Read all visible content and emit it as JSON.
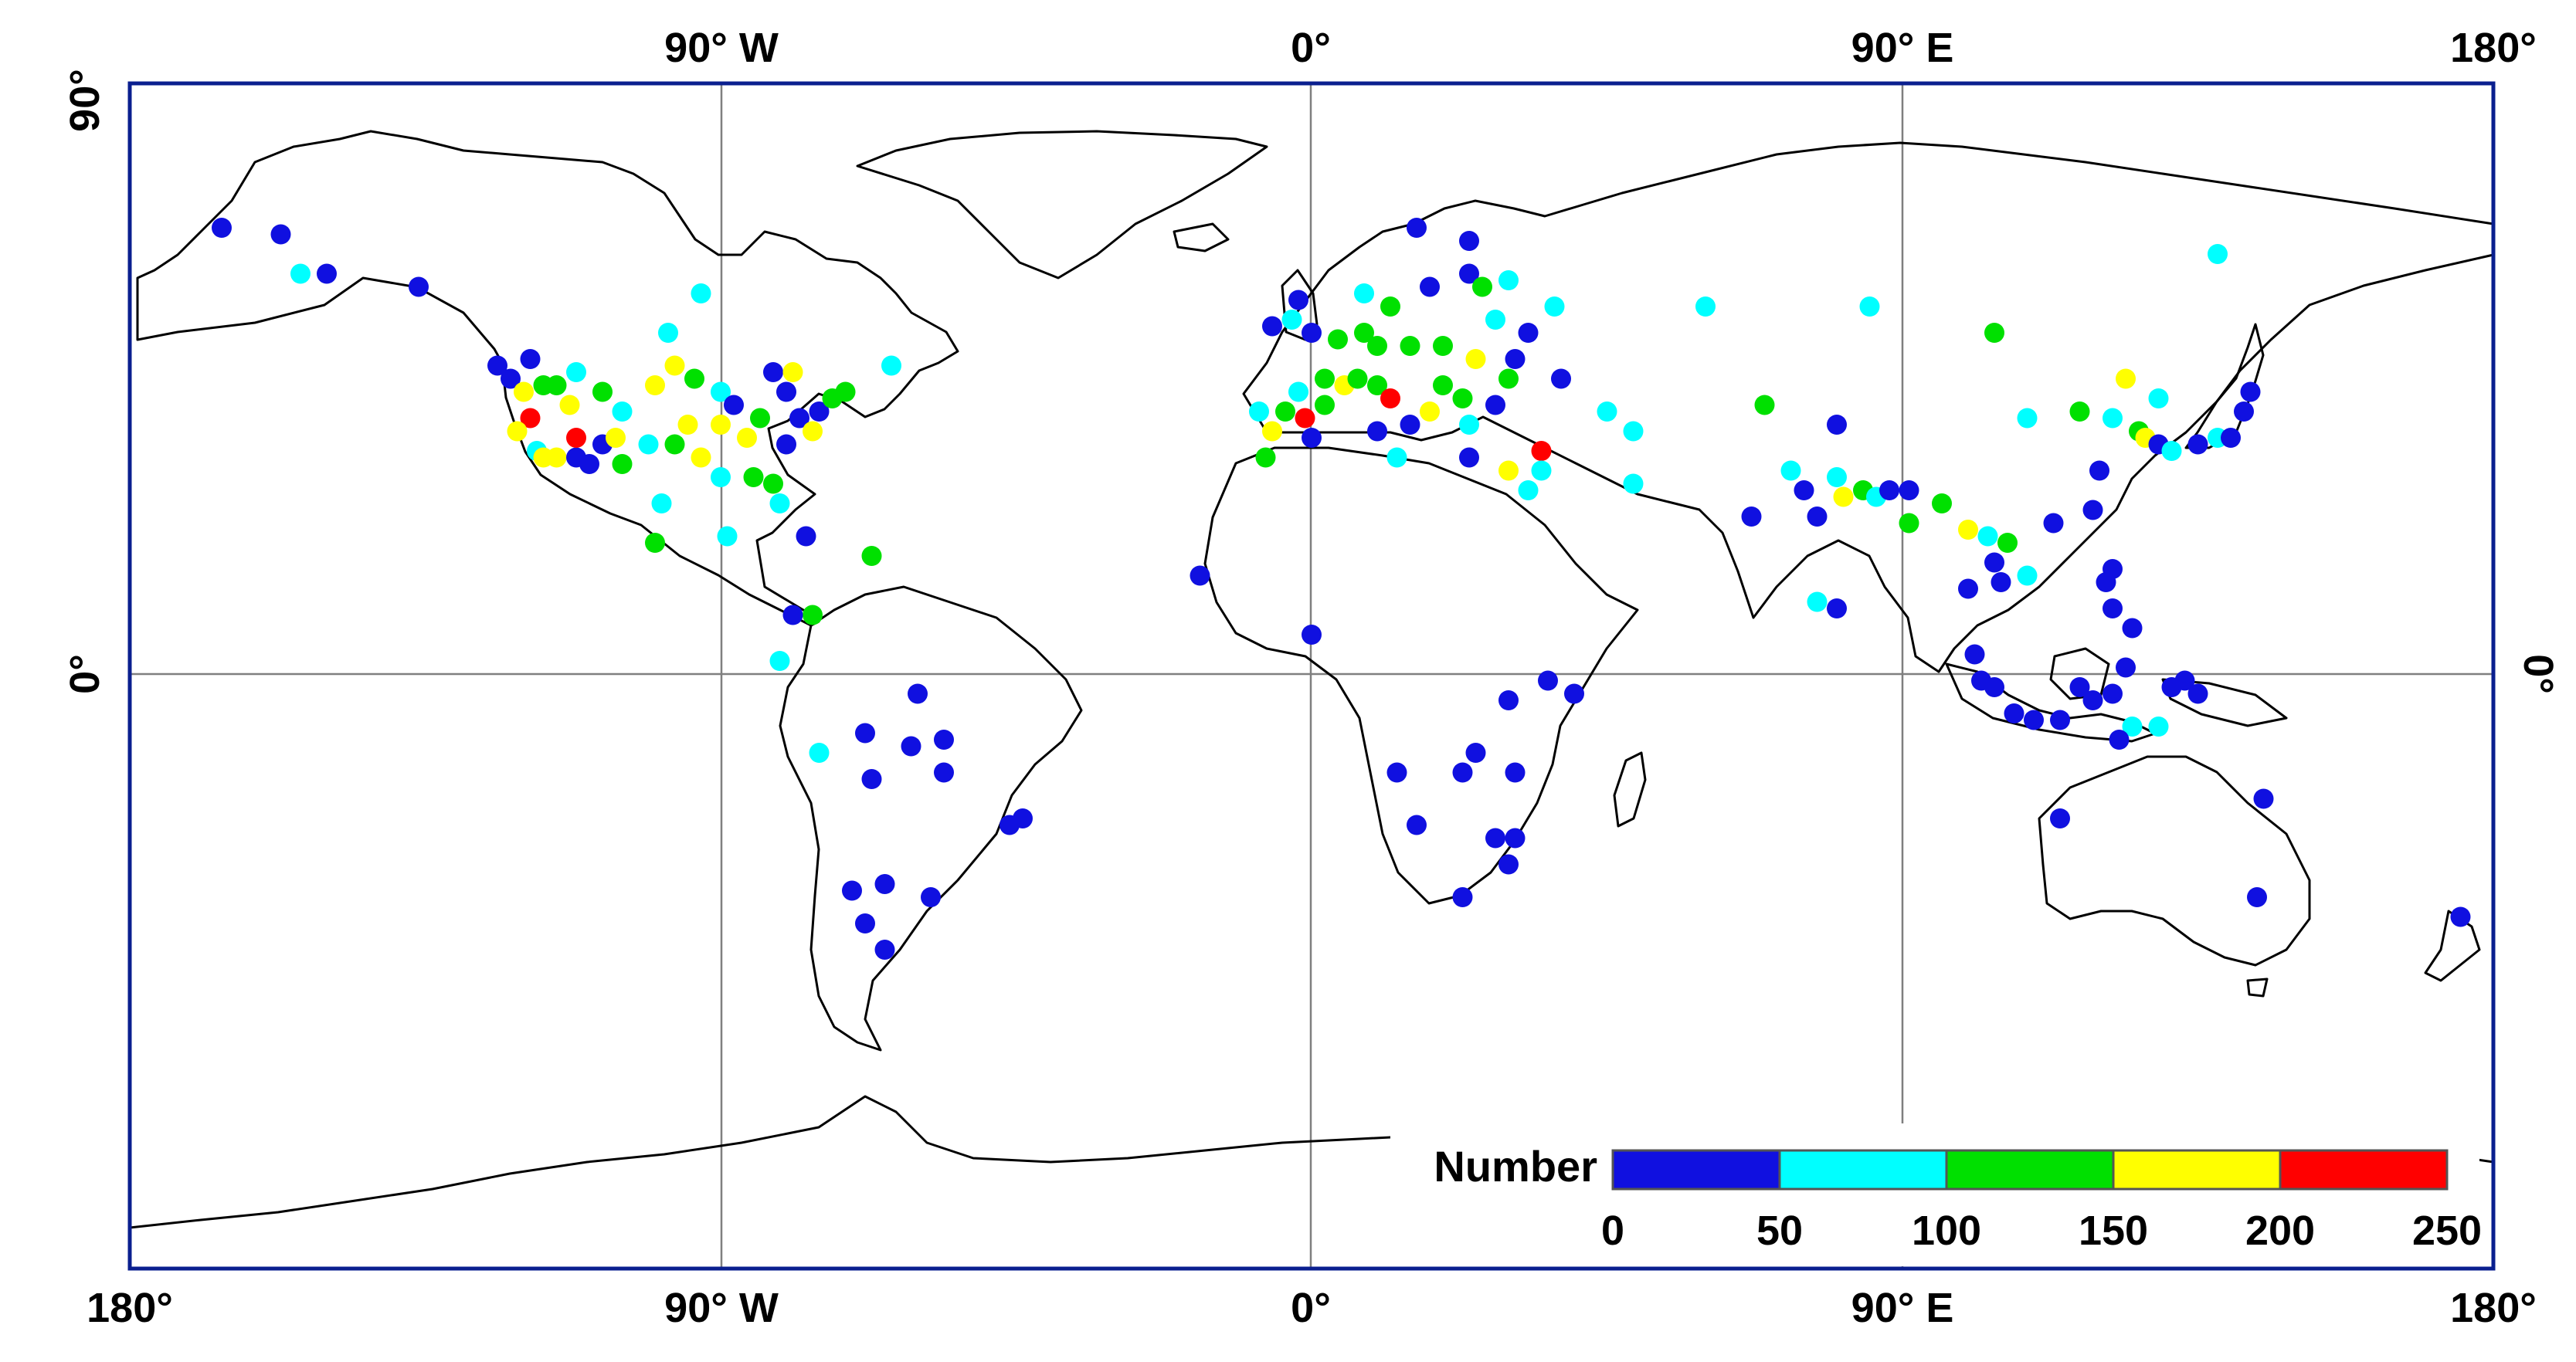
{
  "map": {
    "top_labels": [
      "90° W",
      "0°",
      "90° E",
      "180°"
    ],
    "bottom_labels": [
      "180°",
      "90° W",
      "0°",
      "90° E",
      "180°"
    ],
    "left_labels": [
      "90°",
      "0°"
    ],
    "right_labels": [
      "0°"
    ]
  },
  "legend": {
    "title": "Number",
    "ticks": [
      "0",
      "50",
      "100",
      "150",
      "200",
      "250"
    ],
    "colors": [
      "#1010e0",
      "#00ffff",
      "#00e000",
      "#ffff00",
      "#ff0000"
    ]
  },
  "stations": [
    {
      "lon": -166,
      "lat": 68,
      "v": 20
    },
    {
      "lon": -157,
      "lat": 67,
      "v": 20
    },
    {
      "lon": -154,
      "lat": 61,
      "v": 70
    },
    {
      "lon": -150,
      "lat": 61,
      "v": 20
    },
    {
      "lon": -136,
      "lat": 59,
      "v": 20
    },
    {
      "lon": -124,
      "lat": 47,
      "v": 20
    },
    {
      "lon": -122,
      "lat": 45,
      "v": 30
    },
    {
      "lon": -119,
      "lat": 48,
      "v": 20
    },
    {
      "lon": -117,
      "lat": 44,
      "v": 130
    },
    {
      "lon": -115,
      "lat": 44,
      "v": 130
    },
    {
      "lon": -112,
      "lat": 46,
      "v": 80
    },
    {
      "lon": -113,
      "lat": 41,
      "v": 180
    },
    {
      "lon": -120,
      "lat": 43,
      "v": 180
    },
    {
      "lon": -119,
      "lat": 39,
      "v": 240
    },
    {
      "lon": -121,
      "lat": 37,
      "v": 160
    },
    {
      "lon": -118,
      "lat": 34,
      "v": 70
    },
    {
      "lon": -117,
      "lat": 33,
      "v": 160
    },
    {
      "lon": -115,
      "lat": 33,
      "v": 180
    },
    {
      "lon": -112,
      "lat": 33,
      "v": 30
    },
    {
      "lon": -108,
      "lat": 35,
      "v": 20
    },
    {
      "lon": -105,
      "lat": 40,
      "v": 70
    },
    {
      "lon": -108,
      "lat": 43,
      "v": 120
    },
    {
      "lon": -100,
      "lat": 44,
      "v": 180
    },
    {
      "lon": -97,
      "lat": 47,
      "v": 190
    },
    {
      "lon": -98,
      "lat": 52,
      "v": 80
    },
    {
      "lon": -94,
      "lat": 45,
      "v": 130
    },
    {
      "lon": -90,
      "lat": 43,
      "v": 60
    },
    {
      "lon": -88,
      "lat": 41,
      "v": 20
    },
    {
      "lon": -84,
      "lat": 39,
      "v": 130
    },
    {
      "lon": -86,
      "lat": 36,
      "v": 160
    },
    {
      "lon": -90,
      "lat": 38,
      "v": 170
    },
    {
      "lon": -95,
      "lat": 38,
      "v": 180
    },
    {
      "lon": -97,
      "lat": 35,
      "v": 130
    },
    {
      "lon": -101,
      "lat": 35,
      "v": 60
    },
    {
      "lon": -105,
      "lat": 32,
      "v": 140
    },
    {
      "lon": -110,
      "lat": 32,
      "v": 20
    },
    {
      "lon": -112,
      "lat": 36,
      "v": 230
    },
    {
      "lon": -106,
      "lat": 36,
      "v": 190
    },
    {
      "lon": -93,
      "lat": 33,
      "v": 190
    },
    {
      "lon": -90,
      "lat": 30,
      "v": 70
    },
    {
      "lon": -85,
      "lat": 30,
      "v": 140
    },
    {
      "lon": -82,
      "lat": 29,
      "v": 130
    },
    {
      "lon": -81,
      "lat": 26,
      "v": 60
    },
    {
      "lon": -80,
      "lat": 35,
      "v": 20
    },
    {
      "lon": -78,
      "lat": 39,
      "v": 20
    },
    {
      "lon": -75,
      "lat": 40,
      "v": 20
    },
    {
      "lon": -73,
      "lat": 42,
      "v": 130
    },
    {
      "lon": -71,
      "lat": 43,
      "v": 120
    },
    {
      "lon": -80,
      "lat": 43,
      "v": 30
    },
    {
      "lon": -82,
      "lat": 46,
      "v": 20
    },
    {
      "lon": -79,
      "lat": 46,
      "v": 180
    },
    {
      "lon": -64,
      "lat": 47,
      "v": 70
    },
    {
      "lon": -93,
      "lat": 58,
      "v": 70
    },
    {
      "lon": -76,
      "lat": 37,
      "v": 180
    },
    {
      "lon": -99,
      "lat": 26,
      "v": 70
    },
    {
      "lon": -89,
      "lat": 21,
      "v": 70
    },
    {
      "lon": -100,
      "lat": 20,
      "v": 130
    },
    {
      "lon": -77,
      "lat": 21,
      "v": 20
    },
    {
      "lon": -67,
      "lat": 18,
      "v": 130
    },
    {
      "lon": -76,
      "lat": 9,
      "v": 130
    },
    {
      "lon": -79,
      "lat": 9,
      "v": 20
    },
    {
      "lon": -81,
      "lat": 2,
      "v": 70
    },
    {
      "lon": -75,
      "lat": -12,
      "v": 70
    },
    {
      "lon": -60,
      "lat": -3,
      "v": 20
    },
    {
      "lon": -68,
      "lat": -9,
      "v": 20
    },
    {
      "lon": -67,
      "lat": -16,
      "v": 20
    },
    {
      "lon": -61,
      "lat": -11,
      "v": 20
    },
    {
      "lon": -56,
      "lat": -10,
      "v": 20
    },
    {
      "lon": -56,
      "lat": -15,
      "v": 20
    },
    {
      "lon": -46,
      "lat": -23,
      "v": 20
    },
    {
      "lon": -44,
      "lat": -22,
      "v": 20
    },
    {
      "lon": -65,
      "lat": -32,
      "v": 20
    },
    {
      "lon": -70,
      "lat": -33,
      "v": 20
    },
    {
      "lon": -58,
      "lat": -34,
      "v": 20
    },
    {
      "lon": -68,
      "lat": -38,
      "v": 20
    },
    {
      "lon": -65,
      "lat": -42,
      "v": 20
    },
    {
      "lon": -17,
      "lat": 15,
      "v": 20
    },
    {
      "lon": 0,
      "lat": 6,
      "v": 20
    },
    {
      "lon": -7,
      "lat": 33,
      "v": 130
    },
    {
      "lon": -6,
      "lat": 37,
      "v": 180
    },
    {
      "lon": -4,
      "lat": 40,
      "v": 140
    },
    {
      "lon": -8,
      "lat": 40,
      "v": 70
    },
    {
      "lon": -1,
      "lat": 39,
      "v": 230
    },
    {
      "lon": 2,
      "lat": 41,
      "v": 130
    },
    {
      "lon": -2,
      "lat": 43,
      "v": 70
    },
    {
      "lon": 2,
      "lat": 45,
      "v": 130
    },
    {
      "lon": 5,
      "lat": 44,
      "v": 160
    },
    {
      "lon": 7,
      "lat": 45,
      "v": 120
    },
    {
      "lon": 10,
      "lat": 44,
      "v": 130
    },
    {
      "lon": 12,
      "lat": 42,
      "v": 230
    },
    {
      "lon": 15,
      "lat": 38,
      "v": 20
    },
    {
      "lon": 18,
      "lat": 40,
      "v": 160
    },
    {
      "lon": 20,
      "lat": 44,
      "v": 130
    },
    {
      "lon": 23,
      "lat": 42,
      "v": 130
    },
    {
      "lon": 24,
      "lat": 38,
      "v": 70
    },
    {
      "lon": 28,
      "lat": 41,
      "v": 20
    },
    {
      "lon": 30,
      "lat": 45,
      "v": 130
    },
    {
      "lon": 25,
      "lat": 48,
      "v": 170
    },
    {
      "lon": 20,
      "lat": 50,
      "v": 130
    },
    {
      "lon": 15,
      "lat": 50,
      "v": 130
    },
    {
      "lon": 10,
      "lat": 50,
      "v": 120
    },
    {
      "lon": 8,
      "lat": 52,
      "v": 130
    },
    {
      "lon": 4,
      "lat": 51,
      "v": 140
    },
    {
      "lon": 0,
      "lat": 52,
      "v": 20
    },
    {
      "lon": -3,
      "lat": 54,
      "v": 60
    },
    {
      "lon": -6,
      "lat": 53,
      "v": 20
    },
    {
      "lon": -2,
      "lat": 57,
      "v": 20
    },
    {
      "lon": 8,
      "lat": 58,
      "v": 60
    },
    {
      "lon": 12,
      "lat": 56,
      "v": 130
    },
    {
      "lon": 18,
      "lat": 59,
      "v": 30
    },
    {
      "lon": 16,
      "lat": 68,
      "v": 20
    },
    {
      "lon": 24,
      "lat": 66,
      "v": 20
    },
    {
      "lon": 24,
      "lat": 61,
      "v": 20
    },
    {
      "lon": 26,
      "lat": 59,
      "v": 140
    },
    {
      "lon": 30,
      "lat": 60,
      "v": 70
    },
    {
      "lon": 28,
      "lat": 54,
      "v": 70
    },
    {
      "lon": 31,
      "lat": 48,
      "v": 20
    },
    {
      "lon": 37,
      "lat": 56,
      "v": 70
    },
    {
      "lon": 33,
      "lat": 52,
      "v": 20
    },
    {
      "lon": 35,
      "lat": 34,
      "v": 210
    },
    {
      "lon": 35,
      "lat": 31,
      "v": 70
    },
    {
      "lon": 33,
      "lat": 28,
      "v": 70
    },
    {
      "lon": 0,
      "lat": 36,
      "v": 20
    },
    {
      "lon": 10,
      "lat": 37,
      "v": 20
    },
    {
      "lon": 13,
      "lat": 33,
      "v": 70
    },
    {
      "lon": 30,
      "lat": 31,
      "v": 180
    },
    {
      "lon": 24,
      "lat": 33,
      "v": 20
    },
    {
      "lon": 38,
      "lat": 45,
      "v": 20
    },
    {
      "lon": 45,
      "lat": 40,
      "v": 70
    },
    {
      "lon": 30,
      "lat": -4,
      "v": 20
    },
    {
      "lon": 36,
      "lat": -1,
      "v": 20
    },
    {
      "lon": 40,
      "lat": -3,
      "v": 20
    },
    {
      "lon": 13,
      "lat": -15,
      "v": 20
    },
    {
      "lon": 23,
      "lat": -15,
      "v": 20
    },
    {
      "lon": 25,
      "lat": -12,
      "v": 20
    },
    {
      "lon": 31,
      "lat": -15,
      "v": 20
    },
    {
      "lon": 16,
      "lat": -23,
      "v": 20
    },
    {
      "lon": 28,
      "lat": -25,
      "v": 20
    },
    {
      "lon": 31,
      "lat": -25,
      "v": 20
    },
    {
      "lon": 30,
      "lat": -29,
      "v": 20
    },
    {
      "lon": 23,
      "lat": -34,
      "v": 20
    },
    {
      "lon": 49,
      "lat": 37,
      "v": 70
    },
    {
      "lon": 49,
      "lat": 29,
      "v": 70
    },
    {
      "lon": 60,
      "lat": 56,
      "v": 70
    },
    {
      "lon": 85,
      "lat": 56,
      "v": 70
    },
    {
      "lon": 104,
      "lat": 52,
      "v": 130
    },
    {
      "lon": 69,
      "lat": 41,
      "v": 130
    },
    {
      "lon": 73,
      "lat": 31,
      "v": 70
    },
    {
      "lon": 75,
      "lat": 28,
      "v": 20
    },
    {
      "lon": 77,
      "lat": 24,
      "v": 20
    },
    {
      "lon": 80,
      "lat": 30,
      "v": 80
    },
    {
      "lon": 80,
      "lat": 38,
      "v": 20
    },
    {
      "lon": 81,
      "lat": 27,
      "v": 180
    },
    {
      "lon": 84,
      "lat": 28,
      "v": 130
    },
    {
      "lon": 86,
      "lat": 27,
      "v": 60
    },
    {
      "lon": 88,
      "lat": 28,
      "v": 20
    },
    {
      "lon": 91,
      "lat": 28,
      "v": 20
    },
    {
      "lon": 96,
      "lat": 26,
      "v": 130
    },
    {
      "lon": 67,
      "lat": 24,
      "v": 20
    },
    {
      "lon": 77,
      "lat": 11,
      "v": 70
    },
    {
      "lon": 80,
      "lat": 10,
      "v": 20
    },
    {
      "lon": 91,
      "lat": 23,
      "v": 130
    },
    {
      "lon": 100,
      "lat": 22,
      "v": 180
    },
    {
      "lon": 103,
      "lat": 21,
      "v": 70
    },
    {
      "lon": 106,
      "lat": 20,
      "v": 120
    },
    {
      "lon": 104,
      "lat": 17,
      "v": 20
    },
    {
      "lon": 100,
      "lat": 13,
      "v": 20
    },
    {
      "lon": 105,
      "lat": 14,
      "v": 20
    },
    {
      "lon": 109,
      "lat": 15,
      "v": 70
    },
    {
      "lon": 113,
      "lat": 23,
      "v": 20
    },
    {
      "lon": 119,
      "lat": 25,
      "v": 20
    },
    {
      "lon": 120,
      "lat": 31,
      "v": 20
    },
    {
      "lon": 117,
      "lat": 40,
      "v": 130
    },
    {
      "lon": 109,
      "lat": 39,
      "v": 70
    },
    {
      "lon": 122,
      "lat": 39,
      "v": 70
    },
    {
      "lon": 126,
      "lat": 37,
      "v": 130
    },
    {
      "lon": 127,
      "lat": 36,
      "v": 160
    },
    {
      "lon": 129,
      "lat": 35,
      "v": 30
    },
    {
      "lon": 131,
      "lat": 34,
      "v": 70
    },
    {
      "lon": 135,
      "lat": 35,
      "v": 20
    },
    {
      "lon": 138,
      "lat": 36,
      "v": 70
    },
    {
      "lon": 140,
      "lat": 36,
      "v": 20
    },
    {
      "lon": 142,
      "lat": 40,
      "v": 20
    },
    {
      "lon": 143,
      "lat": 43,
      "v": 20
    },
    {
      "lon": 129,
      "lat": 42,
      "v": 70
    },
    {
      "lon": 124,
      "lat": 45,
      "v": 160
    },
    {
      "lon": 138,
      "lat": 64,
      "v": 70
    },
    {
      "lon": 121,
      "lat": 14,
      "v": 20
    },
    {
      "lon": 122,
      "lat": 10,
      "v": 20
    },
    {
      "lon": 125,
      "lat": 7,
      "v": 20
    },
    {
      "lon": 122,
      "lat": 16,
      "v": 20
    },
    {
      "lon": 101,
      "lat": 3,
      "v": 20
    },
    {
      "lon": 102,
      "lat": -1,
      "v": 20
    },
    {
      "lon": 104,
      "lat": -2,
      "v": 20
    },
    {
      "lon": 107,
      "lat": -6,
      "v": 20
    },
    {
      "lon": 110,
      "lat": -7,
      "v": 20
    },
    {
      "lon": 114,
      "lat": -7,
      "v": 20
    },
    {
      "lon": 117,
      "lat": -2,
      "v": 20
    },
    {
      "lon": 119,
      "lat": -4,
      "v": 20
    },
    {
      "lon": 122,
      "lat": -3,
      "v": 20
    },
    {
      "lon": 124,
      "lat": 1,
      "v": 20
    },
    {
      "lon": 125,
      "lat": -8,
      "v": 70
    },
    {
      "lon": 123,
      "lat": -10,
      "v": 20
    },
    {
      "lon": 131,
      "lat": -2,
      "v": 20
    },
    {
      "lon": 133,
      "lat": -1,
      "v": 20
    },
    {
      "lon": 135,
      "lat": -3,
      "v": 20
    },
    {
      "lon": 129,
      "lat": -8,
      "v": 70
    },
    {
      "lon": 114,
      "lat": -22,
      "v": 20
    },
    {
      "lon": 145,
      "lat": -19,
      "v": 20
    },
    {
      "lon": 144,
      "lat": -34,
      "v": 20
    },
    {
      "lon": 175,
      "lat": -37,
      "v": 20
    }
  ]
}
